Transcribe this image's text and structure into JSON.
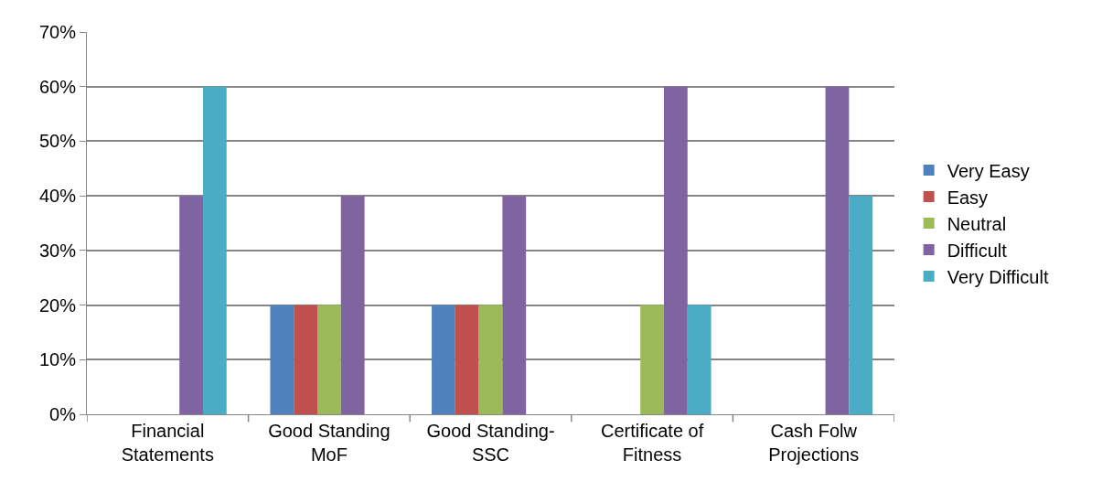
{
  "chart_data": {
    "type": "bar",
    "categories": [
      "Financial Statements",
      "Good Standing MoF",
      "Good Standing-SSC",
      "Certificate of Fitness",
      "Cash Folw Projections"
    ],
    "series": [
      {
        "name": "Very Easy",
        "color": "#4f81bd",
        "values": [
          0,
          20,
          20,
          0,
          0
        ]
      },
      {
        "name": "Easy",
        "color": "#c0504d",
        "values": [
          0,
          20,
          20,
          0,
          0
        ]
      },
      {
        "name": "Neutral",
        "color": "#9bbb59",
        "values": [
          0,
          20,
          20,
          20,
          0
        ]
      },
      {
        "name": "Difficult",
        "color": "#8064a2",
        "values": [
          40,
          40,
          40,
          60,
          60
        ]
      },
      {
        "name": "Very Difficult",
        "color": "#4bacc6",
        "values": [
          60,
          0,
          0,
          20,
          40
        ]
      }
    ],
    "ylim": [
      0,
      70
    ],
    "yticks": [
      {
        "value": 0,
        "label": "0%"
      },
      {
        "value": 10,
        "label": "10%"
      },
      {
        "value": 20,
        "label": "20%"
      },
      {
        "value": 30,
        "label": "30%"
      },
      {
        "value": 40,
        "label": "40%"
      },
      {
        "value": 50,
        "label": "50%"
      },
      {
        "value": 60,
        "label": "60%"
      },
      {
        "value": 70,
        "label": "70%"
      }
    ],
    "grid": "y",
    "legend": "right"
  }
}
